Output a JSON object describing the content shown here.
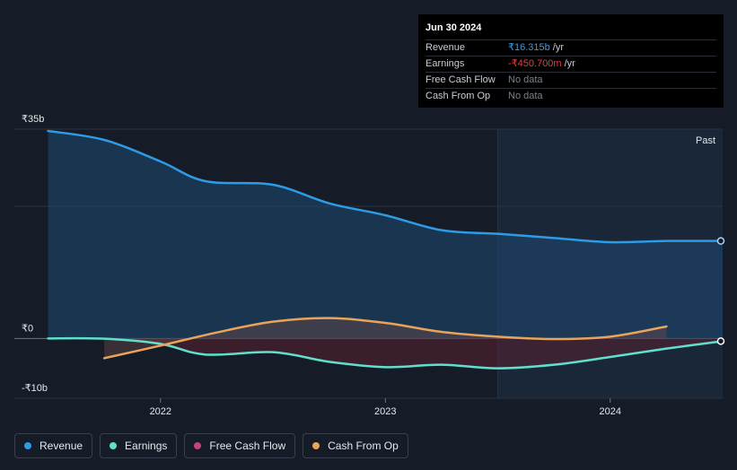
{
  "tooltip": {
    "date": "Jun 30 2024",
    "rows": [
      {
        "label": "Revenue",
        "value": "₹16.315b",
        "unit": "/yr"
      },
      {
        "label": "Earnings",
        "value": "-₹450.700m",
        "unit": "/yr"
      },
      {
        "label": "Free Cash Flow",
        "value": "No data",
        "unit": ""
      },
      {
        "label": "Cash From Op",
        "value": "No data",
        "unit": ""
      }
    ]
  },
  "past_label": "Past",
  "legend": [
    {
      "label": "Revenue",
      "color": "#2d9be6"
    },
    {
      "label": "Earnings",
      "color": "#5fe0cd"
    },
    {
      "label": "Free Cash Flow",
      "color": "#c2457e"
    },
    {
      "label": "Cash From Op",
      "color": "#e8a45a"
    }
  ],
  "chart_data": {
    "type": "line",
    "title": "",
    "xlabel": "",
    "ylabel": "",
    "ylim": [
      -10,
      35
    ],
    "ytick_labels": [
      {
        "value": 35,
        "label": "₹35b"
      },
      {
        "value": 0,
        "label": "₹0"
      },
      {
        "value": -10,
        "label": "-₹10b"
      }
    ],
    "xtick_labels": [
      {
        "value": 2022.0,
        "label": "2022"
      },
      {
        "value": 2023.0,
        "label": "2023"
      },
      {
        "value": 2024.0,
        "label": "2024"
      }
    ],
    "xlim": [
      2021.35,
      2024.5
    ],
    "past_start": 2023.5,
    "series": [
      {
        "name": "Revenue",
        "unit": "₹b",
        "color": "#2d9be6",
        "x": [
          2021.5,
          2021.75,
          2022.0,
          2022.2,
          2022.5,
          2022.75,
          2023.0,
          2023.25,
          2023.5,
          2023.75,
          2024.0,
          2024.25,
          2024.5
        ],
        "values": [
          34.7,
          33.2,
          29.6,
          26.3,
          25.7,
          22.6,
          20.6,
          18.1,
          17.5,
          16.8,
          16.1,
          16.3,
          16.3
        ]
      },
      {
        "name": "Earnings",
        "unit": "₹b",
        "color": "#5fe0cd",
        "x": [
          2021.5,
          2021.75,
          2022.0,
          2022.2,
          2022.5,
          2022.75,
          2023.0,
          2023.25,
          2023.5,
          2023.75,
          2024.0,
          2024.25,
          2024.5
        ],
        "values": [
          0,
          -0.05,
          -0.9,
          -2.7,
          -2.3,
          -3.9,
          -4.8,
          -4.4,
          -5.0,
          -4.4,
          -3.1,
          -1.7,
          -0.45
        ]
      },
      {
        "name": "Cash From Op",
        "unit": "₹b",
        "color": "#e8a45a",
        "x": [
          2021.75,
          2022.0,
          2022.25,
          2022.5,
          2022.75,
          2023.0,
          2023.25,
          2023.5,
          2023.75,
          2024.0,
          2024.25
        ],
        "values": [
          -3.3,
          -1.2,
          1.0,
          2.8,
          3.4,
          2.6,
          1.1,
          0.3,
          -0.1,
          0.3,
          2.0
        ]
      }
    ]
  }
}
